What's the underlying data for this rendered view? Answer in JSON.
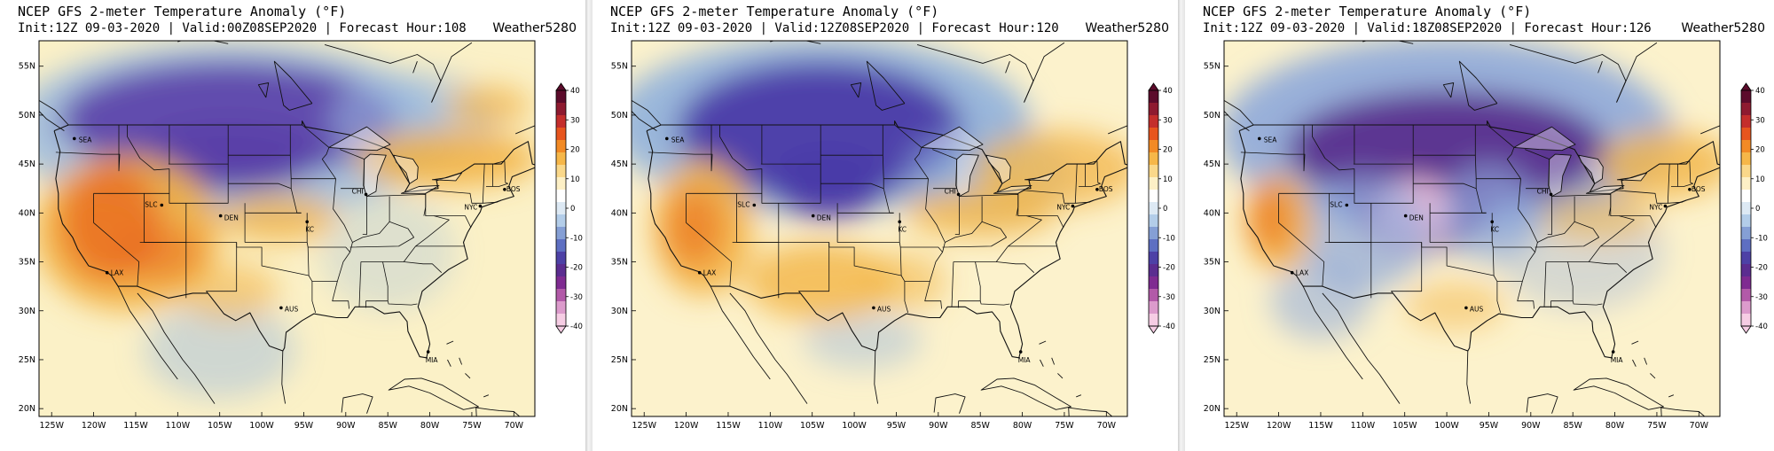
{
  "panels": [
    {
      "title": "NCEP GFS 2-meter Temperature Anomaly (°F)",
      "subtitle": "Init:12Z 09-03-2020 | Valid:00Z08SEP2020 | Forecast Hour:108",
      "brand": "Weather5280",
      "cold_center": "north",
      "colors": {
        "cold": "#5a3fa8",
        "cool": "#9ab8de",
        "warm": "#f2b040",
        "hot": "#e8641c",
        "bg": "#fbf1c7"
      }
    },
    {
      "title": "NCEP GFS 2-meter Temperature Anomaly (°F)",
      "subtitle": "Init:12Z 09-03-2020 | Valid:12Z08SEP2020 | Forecast Hour:120",
      "brand": "Weather5280",
      "cold_center": "rockies",
      "colors": {
        "cold": "#4a3aa8",
        "cool": "#8fb0dc",
        "warm": "#f3b445",
        "hot": "#ec7a22",
        "bg": "#fcf2cc"
      }
    },
    {
      "title": "NCEP GFS 2-meter Temperature Anomaly (°F)",
      "subtitle": "Init:12Z 09-03-2020 | Valid:18Z08SEP2020 | Forecast Hour:126",
      "brand": "Weather5280",
      "cold_center": "plains",
      "colors": {
        "cold": "#5a2e8e",
        "cool": "#8ea8da",
        "warm": "#f3b445",
        "hot": "#ec7a22",
        "bg": "#fcf2cc",
        "extreme": "#eebbd6"
      }
    }
  ],
  "lat_labels": [
    "55N",
    "50N",
    "45N",
    "40N",
    "35N",
    "30N",
    "25N",
    "20N"
  ],
  "lon_labels": [
    "125W",
    "120W",
    "115W",
    "110W",
    "105W",
    "100W",
    "95W",
    "90W",
    "85W",
    "80W",
    "75W",
    "70W"
  ],
  "cities": [
    "SEA",
    "SLC",
    "DEN",
    "KC",
    "CHI",
    "NYC",
    "BOS",
    "LAX",
    "AUS",
    "MIA"
  ],
  "colorbar": {
    "ticks": [
      "40",
      "30",
      "20",
      "10",
      "0",
      "-10",
      "-20",
      "-30",
      "-40"
    ],
    "colors": [
      "#5c0b2b",
      "#8e1a30",
      "#c42e2c",
      "#e7551e",
      "#f28a25",
      "#f6b749",
      "#fad88a",
      "#fdf0c6",
      "#ffffff",
      "#dde9f4",
      "#b3cde9",
      "#859fd5",
      "#5e6fc2",
      "#4d41a6",
      "#5b2d90",
      "#7f2b91",
      "#b25aa8",
      "#dc9bcc",
      "#f6cde4"
    ]
  }
}
